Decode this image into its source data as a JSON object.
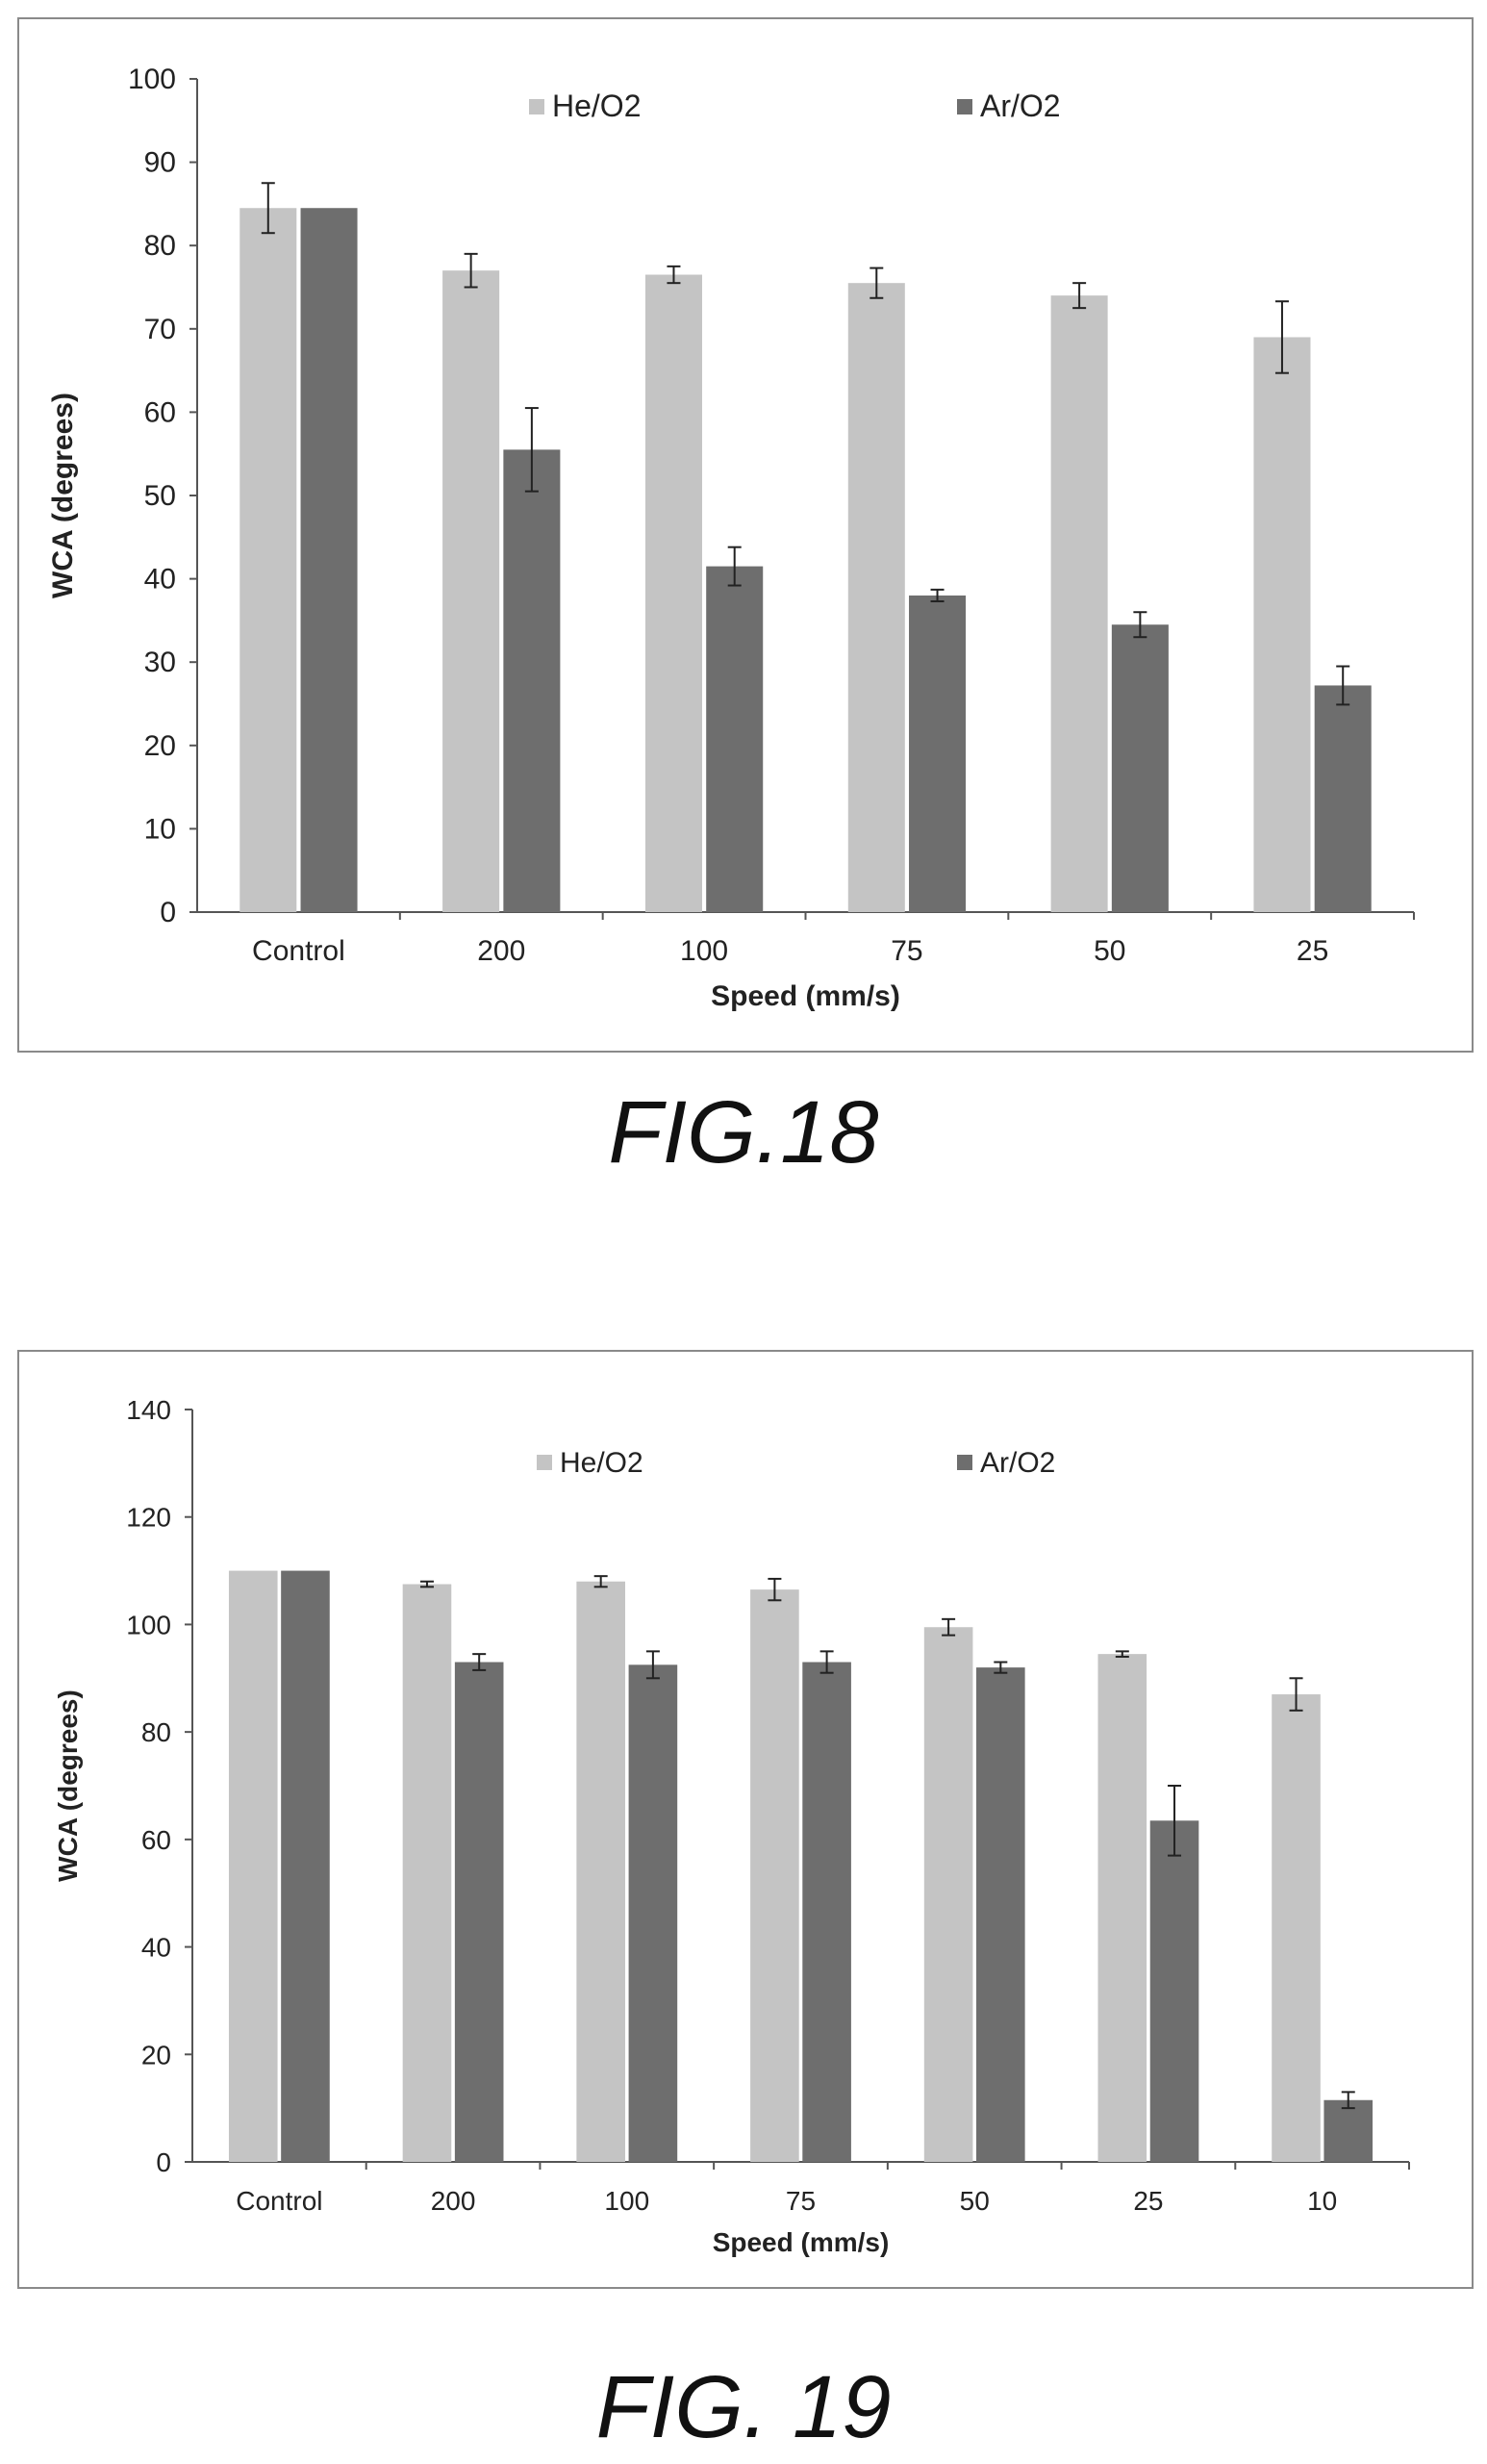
{
  "colors": {
    "he_o2": "#c4c4c4",
    "ar_o2": "#6e6e6e",
    "axis": "#555555",
    "text": "#222222"
  },
  "figures": [
    {
      "caption": "FIG.18"
    },
    {
      "caption": "FIG. 19"
    }
  ],
  "chart_data": [
    {
      "type": "bar",
      "title": "",
      "xlabel": "Speed (mm/s)",
      "ylabel": "WCA (degrees)",
      "ylim": [
        0,
        100
      ],
      "yticks": [
        "0",
        "10",
        "20",
        "30",
        "40",
        "50",
        "60",
        "70",
        "80",
        "90",
        "100"
      ],
      "categories": [
        "Control",
        "200",
        "100",
        "75",
        "50",
        "25"
      ],
      "legend_position": "top",
      "grid": false,
      "series": [
        {
          "name": "He/O2",
          "values": [
            84.5,
            77,
            76.5,
            75.5,
            74,
            69
          ],
          "errors": [
            3,
            2,
            1,
            1.8,
            1.5,
            4.3
          ]
        },
        {
          "name": "Ar/O2",
          "values": [
            84.5,
            55.5,
            41.5,
            38,
            34.5,
            27.2
          ],
          "errors": [
            0,
            5,
            2.3,
            0.7,
            1.5,
            2.3
          ]
        }
      ]
    },
    {
      "type": "bar",
      "title": "",
      "xlabel": "Speed (mm/s)",
      "ylabel": "WCA (degrees)",
      "ylim": [
        0,
        140
      ],
      "yticks": [
        "0",
        "20",
        "40",
        "60",
        "80",
        "100",
        "120",
        "140"
      ],
      "categories": [
        "Control",
        "200",
        "100",
        "75",
        "50",
        "25",
        "10"
      ],
      "legend_position": "top",
      "grid": false,
      "series": [
        {
          "name": "He/O2",
          "values": [
            110,
            107.5,
            108,
            106.5,
            99.5,
            94.5,
            87
          ],
          "errors": [
            0,
            0.5,
            1,
            2,
            1.5,
            0.5,
            3
          ]
        },
        {
          "name": "Ar/O2",
          "values": [
            110,
            93,
            92.5,
            93,
            92,
            63.5,
            11.5
          ],
          "errors": [
            0,
            1.5,
            2.5,
            2,
            1,
            6.5,
            1.5
          ]
        }
      ]
    }
  ]
}
